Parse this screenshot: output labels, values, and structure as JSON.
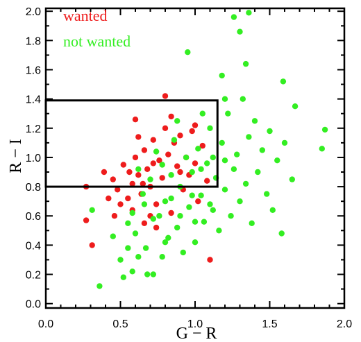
{
  "chart_data": {
    "type": "scatter",
    "xlabel": "G − R",
    "ylabel": "R − I",
    "xlim": [
      0.0,
      2.0
    ],
    "ylim": [
      -0.03,
      2.02
    ],
    "x_ticks": [
      "0.0",
      "0.5",
      "1.0",
      "1.5",
      "2.0"
    ],
    "y_ticks": [
      "0.0",
      "0.2",
      "0.4",
      "0.6",
      "0.8",
      "1.0",
      "1.2",
      "1.4",
      "1.6",
      "1.8",
      "2.0"
    ],
    "legend_position": "top-left",
    "grid": false,
    "selection_box": {
      "x": [
        0.0,
        1.15
      ],
      "y": [
        0.8,
        1.39
      ]
    },
    "series": [
      {
        "name": "wanted",
        "color": "#ee1c1c",
        "points": [
          [
            0.27,
            0.8
          ],
          [
            0.27,
            0.57
          ],
          [
            0.31,
            0.4
          ],
          [
            0.39,
            0.9
          ],
          [
            0.45,
            0.85
          ],
          [
            0.48,
            0.78
          ],
          [
            0.52,
            0.95
          ],
          [
            0.55,
            0.72
          ],
          [
            0.58,
            0.82
          ],
          [
            0.6,
            1.0
          ],
          [
            0.62,
            0.88
          ],
          [
            0.64,
            0.75
          ],
          [
            0.66,
            1.05
          ],
          [
            0.68,
            0.92
          ],
          [
            0.7,
            0.8
          ],
          [
            0.72,
            1.12
          ],
          [
            0.74,
            0.68
          ],
          [
            0.76,
            0.98
          ],
          [
            0.78,
            0.86
          ],
          [
            0.8,
            1.2
          ],
          [
            0.82,
            1.02
          ],
          [
            0.84,
            0.62
          ],
          [
            0.86,
            1.1
          ],
          [
            0.88,
            0.94
          ],
          [
            0.9,
            1.15
          ],
          [
            0.92,
            0.78
          ],
          [
            0.94,
            1.0
          ],
          [
            0.96,
            0.88
          ],
          [
            0.98,
            1.18
          ],
          [
            1.0,
            0.96
          ],
          [
            1.02,
            0.7
          ],
          [
            1.05,
            1.08
          ],
          [
            1.08,
            0.84
          ],
          [
            1.1,
            0.3
          ],
          [
            0.8,
            1.42
          ],
          [
            0.6,
            1.26
          ],
          [
            0.58,
            0.64
          ],
          [
            0.66,
            0.55
          ],
          [
            0.7,
            0.6
          ],
          [
            0.74,
            0.52
          ],
          [
            0.5,
            0.68
          ],
          [
            0.46,
            0.6
          ],
          [
            0.42,
            0.72
          ],
          [
            0.56,
            0.9
          ],
          [
            0.62,
            1.14
          ],
          [
            0.84,
            1.28
          ],
          [
            0.72,
            0.96
          ],
          [
            0.9,
            0.9
          ],
          [
            1.0,
            1.22
          ],
          [
            0.65,
            0.82
          ]
        ]
      },
      {
        "name": "not wanted",
        "color": "#33ee22",
        "points": [
          [
            0.36,
            0.12
          ],
          [
            0.31,
            0.64
          ],
          [
            0.55,
            0.55
          ],
          [
            0.58,
            0.62
          ],
          [
            0.6,
            0.48
          ],
          [
            0.62,
            0.92
          ],
          [
            0.65,
            0.75
          ],
          [
            0.67,
            0.38
          ],
          [
            0.7,
            0.85
          ],
          [
            0.72,
            0.2
          ],
          [
            0.74,
            1.04
          ],
          [
            0.76,
            0.6
          ],
          [
            0.78,
            0.95
          ],
          [
            0.8,
            0.7
          ],
          [
            0.82,
            0.45
          ],
          [
            0.84,
            0.88
          ],
          [
            0.86,
            1.12
          ],
          [
            0.88,
            0.52
          ],
          [
            0.9,
            0.8
          ],
          [
            0.92,
            0.35
          ],
          [
            0.94,
            1.0
          ],
          [
            0.96,
            0.66
          ],
          [
            0.98,
            0.9
          ],
          [
            1.0,
            0.42
          ],
          [
            1.02,
            1.06
          ],
          [
            1.04,
            0.74
          ],
          [
            1.06,
            0.56
          ],
          [
            1.08,
            0.96
          ],
          [
            1.1,
            1.2
          ],
          [
            1.12,
            0.64
          ],
          [
            1.14,
            0.86
          ],
          [
            1.16,
            0.5
          ],
          [
            1.18,
            1.1
          ],
          [
            1.2,
            0.78
          ],
          [
            1.22,
            1.3
          ],
          [
            1.24,
            0.6
          ],
          [
            1.26,
            0.92
          ],
          [
            1.28,
            1.02
          ],
          [
            1.3,
            0.7
          ],
          [
            1.32,
            1.4
          ],
          [
            1.34,
            0.82
          ],
          [
            1.36,
            1.14
          ],
          [
            1.38,
            0.55
          ],
          [
            1.4,
            1.25
          ],
          [
            1.42,
            0.9
          ],
          [
            1.45,
            1.05
          ],
          [
            1.48,
            0.75
          ],
          [
            1.5,
            1.18
          ],
          [
            1.52,
            0.64
          ],
          [
            1.55,
            0.98
          ],
          [
            1.58,
            0.48
          ],
          [
            1.6,
            1.1
          ],
          [
            1.65,
            0.85
          ],
          [
            1.67,
            1.35
          ],
          [
            1.85,
            1.06
          ],
          [
            1.87,
            1.19
          ],
          [
            1.59,
            1.52
          ],
          [
            1.34,
            1.64
          ],
          [
            1.26,
            1.96
          ],
          [
            1.3,
            1.86
          ],
          [
            1.36,
            1.99
          ],
          [
            1.2,
            1.4
          ],
          [
            1.18,
            1.56
          ],
          [
            0.95,
            1.72
          ],
          [
            1.05,
            1.3
          ],
          [
            0.88,
            1.25
          ],
          [
            0.55,
            0.38
          ],
          [
            0.5,
            0.3
          ],
          [
            0.58,
            0.22
          ],
          [
            0.52,
            0.18
          ],
          [
            0.68,
            0.2
          ],
          [
            0.62,
            0.32
          ],
          [
            0.45,
            0.46
          ],
          [
            0.78,
            0.32
          ],
          [
            0.8,
            0.42
          ],
          [
            0.9,
            0.6
          ],
          [
            1.0,
            0.56
          ],
          [
            1.1,
            0.68
          ],
          [
            0.72,
            0.58
          ],
          [
            0.66,
            0.68
          ],
          [
            0.98,
            0.74
          ],
          [
            1.04,
            0.92
          ],
          [
            1.12,
            1.0
          ],
          [
            1.2,
            0.98
          ],
          [
            0.84,
            0.72
          ]
        ]
      }
    ]
  }
}
